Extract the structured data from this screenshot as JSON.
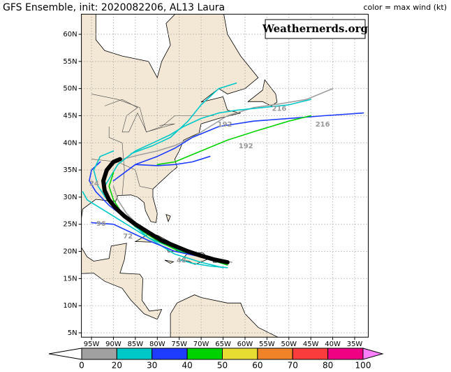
{
  "map": {
    "title": "GFS Ensemble, init: 2020082206, AL13 Laura",
    "legend_note": "color = max wind (kt)",
    "watermark": "Weathernerds.org",
    "xlim": [
      -97.3,
      -31.9
    ],
    "ylim": [
      4.2,
      63.7
    ],
    "xticks": [
      {
        "value": -95,
        "label": "95W"
      },
      {
        "value": -90,
        "label": "90W"
      },
      {
        "value": -85,
        "label": "85W"
      },
      {
        "value": -80,
        "label": "80W"
      },
      {
        "value": -75,
        "label": "75W"
      },
      {
        "value": -70,
        "label": "70W"
      },
      {
        "value": -65,
        "label": "65W"
      },
      {
        "value": -60,
        "label": "60W"
      },
      {
        "value": -55,
        "label": "55W"
      },
      {
        "value": -50,
        "label": "50W"
      },
      {
        "value": -45,
        "label": "45W"
      },
      {
        "value": -40,
        "label": "40W"
      },
      {
        "value": -35,
        "label": "35W"
      }
    ],
    "yticks": [
      {
        "value": 5,
        "label": "5N"
      },
      {
        "value": 10,
        "label": "10N"
      },
      {
        "value": 15,
        "label": "15N"
      },
      {
        "value": 20,
        "label": "20N"
      },
      {
        "value": 25,
        "label": "25N"
      },
      {
        "value": 30,
        "label": "30N"
      },
      {
        "value": 35,
        "label": "35N"
      },
      {
        "value": 40,
        "label": "40N"
      },
      {
        "value": 45,
        "label": "45N"
      },
      {
        "value": 50,
        "label": "50N"
      },
      {
        "value": 55,
        "label": "55N"
      },
      {
        "value": 60,
        "label": "60N"
      }
    ],
    "grid": true,
    "colorbar": {
      "bounds": [
        0,
        20,
        30,
        40,
        50,
        60,
        70,
        80,
        100
      ],
      "colors": [
        "#a0a0a0",
        "#00c8c8",
        "#1e3cff",
        "#00d200",
        "#e6dc32",
        "#f08228",
        "#fa3c3c",
        "#f00082"
      ],
      "under_color": "#ffffff",
      "over_color": "#ff80ff"
    },
    "track_labels": [
      216,
      216,
      192,
      192,
      96,
      72,
      24,
      48
    ],
    "tracks": [
      {
        "color": "#a0a0a0",
        "lon": [
          -88,
          -84,
          -80,
          -76,
          -72,
          -68,
          -64,
          -58,
          -52,
          -46,
          -40
        ],
        "lat": [
          37,
          37.8,
          38.5,
          39.5,
          41,
          43,
          45,
          46.5,
          47.2,
          48,
          50
        ]
      },
      {
        "color": "#00c8c8",
        "lon": [
          -92,
          -89,
          -85,
          -81,
          -77,
          -74,
          -70,
          -66,
          -62,
          -56,
          -50,
          -45
        ],
        "lat": [
          32,
          36,
          38.5,
          40,
          41.5,
          43,
          44.5,
          45.5,
          46,
          46.5,
          47,
          48
        ]
      },
      {
        "color": "#00c8c8",
        "lon": [
          -86,
          -81,
          -77,
          -73,
          -70,
          -66,
          -62
        ],
        "lat": [
          38,
          39.5,
          41,
          44,
          47,
          50,
          51
        ]
      },
      {
        "color": "#1e3cff",
        "lon": [
          -90,
          -85,
          -80,
          -76,
          -72,
          -66,
          -58,
          -50,
          -42,
          -33
        ],
        "lat": [
          33,
          36,
          37.5,
          39,
          41,
          43,
          44,
          44.5,
          45,
          45.5
        ]
      },
      {
        "color": "#00d200",
        "lon": [
          -80,
          -76,
          -70,
          -64,
          -57,
          -50,
          -45
        ],
        "lat": [
          36,
          36.5,
          38.5,
          40.5,
          42.3,
          44,
          45
        ]
      },
      {
        "color": "#1e3cff",
        "lon": [
          -85,
          -80,
          -76,
          -72,
          -68
        ],
        "lat": [
          36,
          35.8,
          36,
          36.5,
          37.5
        ]
      },
      {
        "color": "#00c8c8",
        "lon": [
          -64,
          -70,
          -76,
          -82,
          -88,
          -93,
          -96,
          -97
        ],
        "lat": [
          17.5,
          19,
          20.5,
          22.5,
          25.5,
          28,
          29.5,
          31
        ]
      },
      {
        "color": "#1e3cff",
        "lon": [
          -64,
          -70,
          -76,
          -82,
          -87,
          -91,
          -94,
          -95.5,
          -95,
          -93
        ],
        "lat": [
          18,
          19.5,
          21,
          23.5,
          26,
          28.5,
          31,
          33,
          35,
          36.5
        ]
      },
      {
        "color": "#00d200",
        "lon": [
          -64,
          -70,
          -75,
          -80,
          -85,
          -88,
          -90,
          -91,
          -90
        ],
        "lat": [
          17.5,
          19,
          20,
          22,
          24.5,
          27,
          29.5,
          32,
          34.5
        ]
      },
      {
        "color": "#00c8c8",
        "lon": [
          -65,
          -70,
          -76,
          -82,
          -87,
          -91,
          -93.5,
          -94.5,
          -93,
          -90
        ],
        "lat": [
          17,
          18,
          19.5,
          22.5,
          26,
          29,
          32,
          35,
          37.5,
          38.5
        ]
      },
      {
        "color": "#1e3cff",
        "lon": [
          -64,
          -70,
          -76,
          -82,
          -86,
          -90,
          -95
        ],
        "lat": [
          18,
          19,
          20,
          22,
          23.5,
          25,
          25.3
        ]
      },
      {
        "color": "#00c8c8",
        "lon": [
          -64,
          -68,
          -72,
          -75
        ],
        "lat": [
          17,
          17.3,
          17.8,
          18.5
        ]
      },
      {
        "color": "#a0a0a0",
        "lon": [
          -63,
          -68,
          -72,
          -76,
          -80,
          -84,
          -87,
          -89,
          -90
        ],
        "lat": [
          18,
          19,
          20,
          21,
          22.5,
          24.5,
          27,
          29.5,
          32
        ]
      },
      {
        "color": "#000000",
        "lon": [
          -64,
          -67,
          -70,
          -73,
          -76,
          -79,
          -82,
          -85,
          -87.5,
          -89.5,
          -91,
          -92,
          -92.3,
          -91.5,
          -90,
          -88.5
        ],
        "lat": [
          18,
          18.5,
          19.2,
          20,
          21,
          22,
          23.5,
          25,
          26.5,
          28,
          29.5,
          31.2,
          33,
          35,
          36.5,
          37
        ]
      }
    ]
  }
}
